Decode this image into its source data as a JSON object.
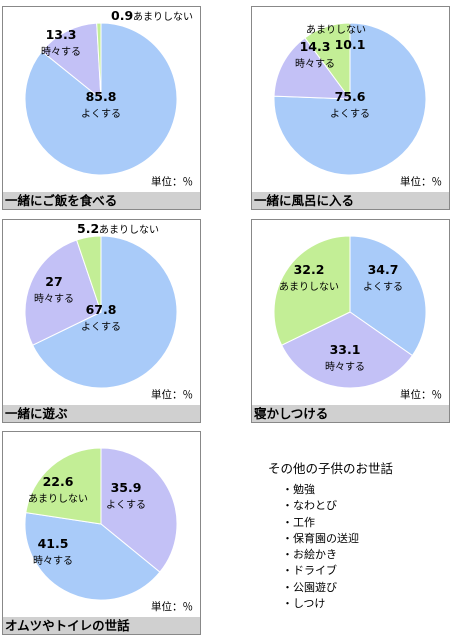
{
  "colors": {
    "yoku": "#a9cbf9",
    "tokidoki": "#c3c1f6",
    "amari": "#c3ee96",
    "stroke": "#ffffff"
  },
  "chart_data": [
    {
      "type": "pie",
      "caption": "一緒にご飯を食べる",
      "unit": "単位：％",
      "slices": [
        {
          "name": "よくする",
          "value": 85.8,
          "color": "yoku"
        },
        {
          "name": "時々する",
          "value": 13.3,
          "color": "tokidoki"
        },
        {
          "name": "あまりしない",
          "value": 0.9,
          "color": "amari"
        }
      ]
    },
    {
      "type": "pie",
      "caption": "一緒に風呂に入る",
      "unit": "単位：％",
      "slices": [
        {
          "name": "よくする",
          "value": 75.6,
          "color": "yoku"
        },
        {
          "name": "時々する",
          "value": 14.3,
          "color": "tokidoki"
        },
        {
          "name": "あまりしない",
          "value": 10.1,
          "color": "amari"
        }
      ]
    },
    {
      "type": "pie",
      "caption": "一緒に遊ぶ",
      "unit": "単位：％",
      "slices": [
        {
          "name": "よくする",
          "value": 67.8,
          "color": "yoku"
        },
        {
          "name": "時々する",
          "value": 27,
          "color": "tokidoki"
        },
        {
          "name": "あまりしない",
          "value": 5.2,
          "color": "amari"
        }
      ]
    },
    {
      "type": "pie",
      "caption": "寝かしつける",
      "unit": "単位：％",
      "slices": [
        {
          "name": "よくする",
          "value": 34.7,
          "color": "yoku"
        },
        {
          "name": "時々する",
          "value": 33.1,
          "color": "tokidoki"
        },
        {
          "name": "あまりしない",
          "value": 32.2,
          "color": "amari"
        }
      ]
    },
    {
      "type": "pie",
      "caption": "オムツやトイレの世話",
      "unit": "単位：％",
      "slices": [
        {
          "name": "よくする",
          "value": 35.9,
          "color": "tokidoki"
        },
        {
          "name": "時々する",
          "value": 41.5,
          "color": "yoku"
        },
        {
          "name": "あまりしない",
          "value": 22.6,
          "color": "amari"
        }
      ]
    }
  ],
  "other_care": {
    "title": "その他の子供のお世話",
    "items": [
      "・勉強",
      "・なわとび",
      "・工作",
      "・保育園の送迎",
      "・お絵かき",
      "・ドライブ",
      "・公園遊び",
      "・しつけ"
    ]
  }
}
